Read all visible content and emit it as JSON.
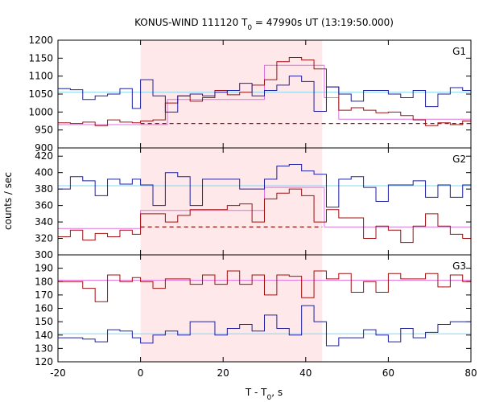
{
  "chart_data": {
    "type": "line",
    "title_prefix": "KONUS-WIND 111120 T",
    "title_sub": "0",
    "title_suffix": " = 47990s UT (13:19:50.000)",
    "xlabel_prefix": "T - T",
    "xlabel_sub": "0",
    "xlabel_suffix": ", s",
    "ylabel": "counts / sec",
    "xlim": [
      -20,
      80
    ],
    "xticks": [
      "-20",
      "0",
      "20",
      "40",
      "60",
      "80"
    ],
    "shaded_interval": [
      0,
      44
    ],
    "colors": {
      "shade": "#ffe8ea",
      "red": "#a01010",
      "blue": "#2020a0",
      "pink": "#e070e0",
      "cyan": "#80d8f0"
    },
    "panels": [
      {
        "name": "G1",
        "ylim": [
          900,
          1200
        ],
        "yticks": [
          "1200",
          "1150",
          "1100",
          "1050",
          "1000",
          "950",
          "900"
        ],
        "ytick_values": [
          1200,
          1150,
          1100,
          1050,
          1000,
          950,
          900
        ],
        "series": [
          {
            "color": "red",
            "x": [
              -20,
              -17,
              -14,
              -11,
              -8,
              -5,
              -2,
              0,
              3,
              6,
              9,
              12,
              15,
              18,
              21,
              24,
              27,
              30,
              33,
              36,
              39,
              42,
              45,
              48,
              51,
              54,
              57,
              60,
              63,
              66,
              69,
              72,
              75,
              78
            ],
            "y": [
              970,
              968,
              972,
              962,
              978,
              972,
              970,
              975,
              978,
              1025,
              1045,
              1030,
              1040,
              1060,
              1048,
              1055,
              1075,
              1090,
              1140,
              1152,
              1145,
              1120,
              1070,
              1005,
              1012,
              1005,
              998,
              1000,
              990,
              978,
              962,
              970,
              965,
              975
            ]
          },
          {
            "color": "blue",
            "x": [
              -20,
              -17,
              -14,
              -11,
              -8,
              -5,
              -2,
              0,
              3,
              6,
              9,
              12,
              15,
              18,
              21,
              24,
              27,
              30,
              33,
              36,
              39,
              42,
              45,
              48,
              51,
              54,
              57,
              60,
              63,
              66,
              69,
              72,
              75,
              78
            ],
            "y": [
              1065,
              1062,
              1035,
              1045,
              1050,
              1065,
              1010,
              1090,
              1045,
              1000,
              1045,
              1050,
              1045,
              1055,
              1060,
              1080,
              1045,
              1060,
              1075,
              1100,
              1085,
              1002,
              1070,
              1050,
              1030,
              1060,
              1060,
              1050,
              1040,
              1060,
              1015,
              1050,
              1068,
              1060
            ]
          }
        ],
        "background_level": {
          "color": "cyan",
          "value": 1055
        },
        "fits": [
          {
            "color": "pink",
            "points": [
              [
                -20,
                965
              ],
              [
                6.5,
                965
              ],
              [
                6.5,
                1035
              ],
              [
                30,
                1035
              ],
              [
                30,
                1130
              ],
              [
                44.5,
                1130
              ],
              [
                44.5,
                1040
              ],
              [
                48,
                1040
              ],
              [
                48,
                980
              ],
              [
                80,
                980
              ]
            ]
          }
        ],
        "baseline_dashed": {
          "color": "red",
          "from": 0,
          "to": 80,
          "value": 968
        }
      },
      {
        "name": "G2",
        "ylim": [
          300,
          430
        ],
        "yticks": [
          "420",
          "400",
          "380",
          "360",
          "340",
          "320",
          "300"
        ],
        "ytick_values": [
          420,
          400,
          380,
          360,
          340,
          320,
          300
        ],
        "series": [
          {
            "color": "blue",
            "x": [
              -20,
              -17,
              -14,
              -11,
              -8,
              -5,
              -2,
              0,
              3,
              6,
              9,
              12,
              15,
              18,
              21,
              24,
              27,
              30,
              33,
              36,
              39,
              42,
              45,
              48,
              51,
              54,
              57,
              60,
              63,
              66,
              69,
              72,
              75,
              78
            ],
            "y": [
              380,
              395,
              390,
              372,
              392,
              386,
              392,
              385,
              360,
              400,
              395,
              360,
              392,
              392,
              392,
              380,
              380,
              392,
              408,
              410,
              402,
              398,
              358,
              392,
              395,
              382,
              365,
              385,
              385,
              390,
              370,
              385,
              370,
              385
            ],
            "hide_last_x": 44.5
          },
          {
            "color": "red",
            "x": [
              -20,
              -17,
              -14,
              -11,
              -8,
              -5,
              -2,
              0,
              3,
              6,
              9,
              12,
              15,
              18,
              21,
              24,
              27,
              30,
              33,
              36,
              39,
              42,
              45,
              48,
              51,
              54,
              57,
              60,
              63,
              66,
              69,
              72,
              75,
              78
            ],
            "y": [
              322,
              330,
              318,
              326,
              322,
              330,
              325,
              350,
              350,
              340,
              348,
              355,
              355,
              355,
              360,
              362,
              340,
              368,
              375,
              380,
              372,
              340,
              355,
              345,
              345,
              320,
              335,
              330,
              315,
              335,
              350,
              335,
              325,
              320
            ]
          }
        ],
        "background_level": {
          "color": "cyan",
          "value": 384
        },
        "fits": [
          {
            "color": "pink",
            "points": [
              [
                -20,
                332
              ],
              [
                0,
                332
              ],
              [
                0,
                354
              ],
              [
                30,
                354
              ],
              [
                30,
                382
              ],
              [
                44.5,
                382
              ],
              [
                44.5,
                334
              ],
              [
                80,
                334
              ]
            ]
          }
        ],
        "baseline_dashed": {
          "color": "red",
          "from": 0,
          "to": 44,
          "value": 334
        }
      },
      {
        "name": "G3",
        "ylim": [
          120,
          200
        ],
        "yticks": [
          "190",
          "180",
          "170",
          "160",
          "150",
          "140",
          "130",
          "120"
        ],
        "ytick_values": [
          190,
          180,
          170,
          160,
          150,
          140,
          130,
          120
        ],
        "series": [
          {
            "color": "red",
            "x": [
              -20,
              -17,
              -14,
              -11,
              -8,
              -5,
              -2,
              0,
              3,
              6,
              9,
              12,
              15,
              18,
              21,
              24,
              27,
              30,
              33,
              36,
              39,
              42,
              45,
              48,
              51,
              54,
              57,
              60,
              63,
              66,
              69,
              72,
              75,
              78
            ],
            "y": [
              180,
              180,
              175,
              165,
              185,
              180,
              183,
              180,
              175,
              182,
              182,
              178,
              185,
              178,
              188,
              178,
              185,
              170,
              185,
              184,
              168,
              188,
              182,
              186,
              172,
              180,
              172,
              186,
              182,
              182,
              186,
              176,
              185,
              180
            ]
          },
          {
            "color": "blue",
            "x": [
              -20,
              -17,
              -14,
              -11,
              -8,
              -5,
              -2,
              0,
              3,
              6,
              9,
              12,
              15,
              18,
              21,
              24,
              27,
              30,
              33,
              36,
              39,
              42,
              45,
              48,
              51,
              54,
              57,
              60,
              63,
              66,
              69,
              72,
              75,
              78
            ],
            "y": [
              138,
              138,
              137,
              135,
              144,
              143,
              138,
              134,
              140,
              143,
              140,
              150,
              150,
              140,
              145,
              148,
              143,
              155,
              145,
              140,
              162,
              150,
              132,
              138,
              138,
              144,
              140,
              135,
              145,
              138,
              142,
              148,
              150,
              150
            ]
          }
        ],
        "background_level": {
          "color": "cyan",
          "value": 141
        },
        "fits": [
          {
            "color": "pink",
            "points": [
              [
                -20,
                181
              ],
              [
                80,
                181
              ]
            ]
          }
        ]
      }
    ]
  }
}
